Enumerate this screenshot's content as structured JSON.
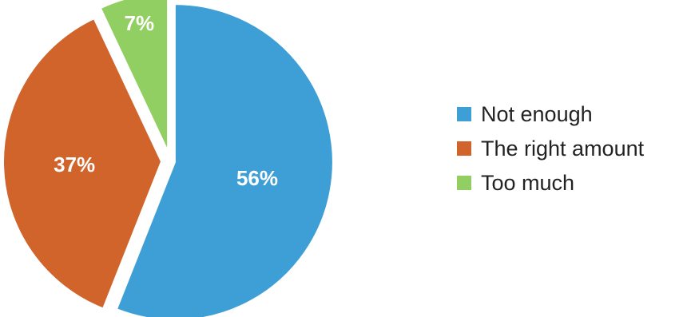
{
  "chart_data": {
    "type": "pie",
    "title": "",
    "categories": [
      "Not enough",
      "The right amount",
      "Too much"
    ],
    "values": [
      56,
      37,
      7
    ],
    "labels": [
      "56%",
      "37%",
      "7%"
    ],
    "colors": [
      "#3d9fd6",
      "#d0642b",
      "#92cf62"
    ],
    "legend_position": "right",
    "exploded": true
  }
}
